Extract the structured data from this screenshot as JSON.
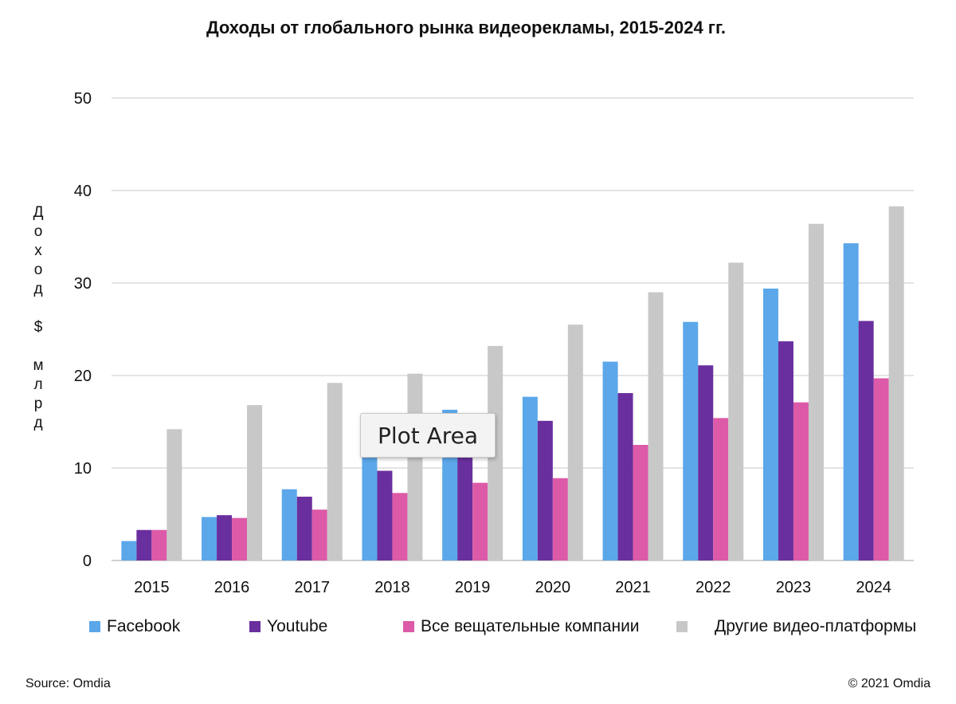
{
  "chart_data": {
    "type": "bar",
    "title": "Доходы от глобального рынка видеорекламы, 2015-2024 гг.",
    "ylabel": "Доход $ млрд",
    "ylabel_chars": [
      "Д",
      "о",
      "х",
      "о",
      "д",
      "",
      "$",
      "",
      "м",
      "л",
      "р",
      "д"
    ],
    "xlabel": "",
    "ylim": [
      0,
      50
    ],
    "yticks": [
      0,
      10,
      20,
      30,
      40,
      50
    ],
    "categories": [
      "2015",
      "2016",
      "2017",
      "2018",
      "2019",
      "2020",
      "2021",
      "2022",
      "2023",
      "2024"
    ],
    "series": [
      {
        "name": "Facebook",
        "color": "#5ba7ea",
        "values": [
          2.1,
          4.7,
          7.7,
          11.4,
          16.3,
          17.7,
          21.5,
          25.8,
          29.4,
          34.3
        ]
      },
      {
        "name": "Youtube",
        "color": "#6a2f9e",
        "values": [
          3.3,
          4.9,
          6.9,
          9.7,
          11.4,
          15.1,
          18.1,
          21.1,
          23.7,
          25.9
        ]
      },
      {
        "name": "Все вещательные компании",
        "color": "#dc5aa8",
        "values": [
          3.3,
          4.6,
          5.5,
          7.3,
          8.4,
          8.9,
          12.5,
          15.4,
          17.1,
          19.7
        ]
      },
      {
        "name": "Другие видео-платформы",
        "color": "#c8c8c8",
        "values": [
          14.2,
          16.8,
          19.2,
          20.2,
          23.2,
          25.5,
          29.0,
          32.2,
          36.4,
          38.3
        ]
      }
    ],
    "grid": true,
    "legend_position": "bottom"
  },
  "tooltip": "Plot Area",
  "footer": {
    "source": "Source: Omdia",
    "copyright": "© 2021 Omdia"
  }
}
